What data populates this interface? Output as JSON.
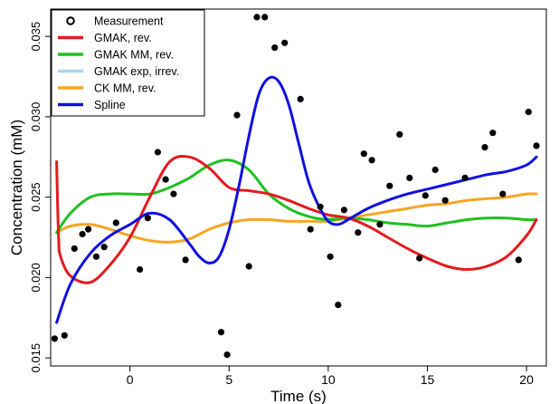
{
  "chart_data": {
    "type": "line",
    "title": "",
    "xlabel": "Time (s)",
    "ylabel": "Concentration (mM)",
    "xlim": [
      -4,
      21
    ],
    "ylim": [
      0.0145,
      0.0367
    ],
    "x_ticks": [
      0,
      5,
      10,
      15,
      20
    ],
    "x_tick_labels": [
      "0",
      "5",
      "10",
      "15",
      "20"
    ],
    "y_ticks": [
      0.015,
      0.02,
      0.025,
      0.03,
      0.035
    ],
    "y_tick_labels": [
      "0.015",
      "0.020",
      "0.025",
      "0.030",
      "0.035"
    ],
    "legend_position": "top-left",
    "legend": [
      {
        "label": "Measurement",
        "kind": "point",
        "color": "#000000"
      },
      {
        "label": "GMAK, rev.",
        "kind": "line",
        "color": "#e41a1c"
      },
      {
        "label": "GMAK MM, rev.",
        "kind": "line",
        "color": "#1fc01f"
      },
      {
        "label": "GMAK exp, irrev.",
        "kind": "line",
        "color": "#a6d7e6"
      },
      {
        "label": "CK MM, rev.",
        "kind": "line",
        "color": "#f5a623"
      },
      {
        "label": "Spline",
        "kind": "line",
        "color": "#1010e0"
      }
    ],
    "measurements": {
      "x": [
        -3.8,
        -3.3,
        -2.8,
        -2.4,
        -2.1,
        -1.7,
        -1.3,
        -0.7,
        0.5,
        0.9,
        1.4,
        1.8,
        2.2,
        2.8,
        4.6,
        4.9,
        5.4,
        6.0,
        6.4,
        6.8,
        7.3,
        7.8,
        8.6,
        9.1,
        9.6,
        10.1,
        10.5,
        10.8,
        11.5,
        11.8,
        12.2,
        12.6,
        13.1,
        13.6,
        14.1,
        14.6,
        14.9,
        15.4,
        15.9,
        16.9,
        17.9,
        18.3,
        18.8,
        19.6,
        20.1,
        20.5
      ],
      "y": [
        0.0162,
        0.0164,
        0.0218,
        0.0227,
        0.023,
        0.0213,
        0.0219,
        0.0234,
        0.0205,
        0.0237,
        0.0278,
        0.0261,
        0.0252,
        0.0211,
        0.0166,
        0.0152,
        0.0301,
        0.0207,
        0.0362,
        0.0362,
        0.0343,
        0.0346,
        0.0311,
        0.023,
        0.0244,
        0.0213,
        0.0183,
        0.0242,
        0.0228,
        0.0277,
        0.0273,
        0.0233,
        0.0257,
        0.0289,
        0.0262,
        0.0212,
        0.0251,
        0.0267,
        0.0248,
        0.0262,
        0.0281,
        0.029,
        0.0252,
        0.0211,
        0.0303,
        0.0282
      ]
    },
    "series": [
      {
        "name": "GMAK, rev.",
        "color": "#e41a1c",
        "x": [
          -3.7,
          -3.6,
          -3.5,
          -3.0,
          -2.0,
          -1.0,
          0.0,
          1.0,
          2.0,
          3.0,
          4.0,
          5.0,
          6.0,
          7.0,
          8.0,
          9.0,
          10.0,
          11.0,
          12.0,
          13.0,
          14.0,
          15.0,
          16.0,
          17.0,
          18.0,
          19.0,
          20.0,
          20.5
        ],
        "y": [
          0.0272,
          0.0225,
          0.0213,
          0.0201,
          0.0197,
          0.0208,
          0.0225,
          0.025,
          0.0272,
          0.0275,
          0.0268,
          0.0256,
          0.0254,
          0.0252,
          0.0248,
          0.0243,
          0.0239,
          0.0237,
          0.0232,
          0.0225,
          0.0218,
          0.0212,
          0.0207,
          0.0205,
          0.0207,
          0.0213,
          0.0226,
          0.0236
        ]
      },
      {
        "name": "GMAK MM, rev.",
        "color": "#1fc01f",
        "x": [
          -3.7,
          -3.0,
          -2.0,
          -1.0,
          0.0,
          1.0,
          2.0,
          3.0,
          4.0,
          5.0,
          6.0,
          7.0,
          8.0,
          9.0,
          10.0,
          11.0,
          12.0,
          13.0,
          14.0,
          15.0,
          16.0,
          17.0,
          18.0,
          19.0,
          20.0,
          20.5
        ],
        "y": [
          0.0228,
          0.024,
          0.025,
          0.0252,
          0.0252,
          0.0252,
          0.0256,
          0.0262,
          0.027,
          0.0273,
          0.0267,
          0.0252,
          0.0243,
          0.0238,
          0.0236,
          0.0237,
          0.0236,
          0.0234,
          0.0233,
          0.0232,
          0.0234,
          0.0236,
          0.0237,
          0.0237,
          0.0236,
          0.0236
        ]
      },
      {
        "name": "GMAK exp, irrev.",
        "color": "#a6d7e6",
        "x": [
          9.5,
          10.0,
          10.5,
          11.0
        ],
        "y": [
          0.0236,
          0.0237,
          0.0237,
          0.0236
        ]
      },
      {
        "name": "CK MM, rev.",
        "color": "#f5a623",
        "x": [
          -3.7,
          -3.0,
          -2.0,
          -1.0,
          0.0,
          1.0,
          2.0,
          3.0,
          4.0,
          5.0,
          6.0,
          7.0,
          8.0,
          9.0,
          10.0,
          11.0,
          12.0,
          13.0,
          14.0,
          15.0,
          16.0,
          17.0,
          18.0,
          19.0,
          20.0,
          20.5
        ],
        "y": [
          0.0228,
          0.0232,
          0.0233,
          0.023,
          0.0226,
          0.0223,
          0.0222,
          0.0224,
          0.023,
          0.0234,
          0.0236,
          0.0236,
          0.0235,
          0.0235,
          0.0235,
          0.0237,
          0.0239,
          0.0241,
          0.0243,
          0.0245,
          0.0246,
          0.0248,
          0.0249,
          0.025,
          0.0252,
          0.0252
        ]
      },
      {
        "name": "Spline",
        "color": "#1010e0",
        "x": [
          -3.7,
          -3.0,
          -2.0,
          -1.0,
          0.0,
          1.0,
          2.0,
          3.0,
          3.5,
          4.0,
          4.5,
          5.0,
          5.5,
          6.0,
          6.5,
          7.0,
          7.5,
          8.0,
          8.5,
          9.0,
          9.5,
          10.0,
          10.5,
          11.0,
          12.0,
          13.0,
          14.0,
          15.0,
          16.0,
          17.0,
          18.0,
          19.0,
          20.0,
          20.5
        ],
        "y": [
          0.0172,
          0.0196,
          0.0215,
          0.0226,
          0.0233,
          0.024,
          0.0236,
          0.0221,
          0.0213,
          0.0209,
          0.0213,
          0.023,
          0.0257,
          0.0288,
          0.0314,
          0.0324,
          0.0322,
          0.0308,
          0.0284,
          0.026,
          0.0245,
          0.0235,
          0.0233,
          0.0236,
          0.0243,
          0.0248,
          0.0252,
          0.0255,
          0.0258,
          0.0261,
          0.0264,
          0.0266,
          0.027,
          0.0275
        ]
      }
    ]
  }
}
